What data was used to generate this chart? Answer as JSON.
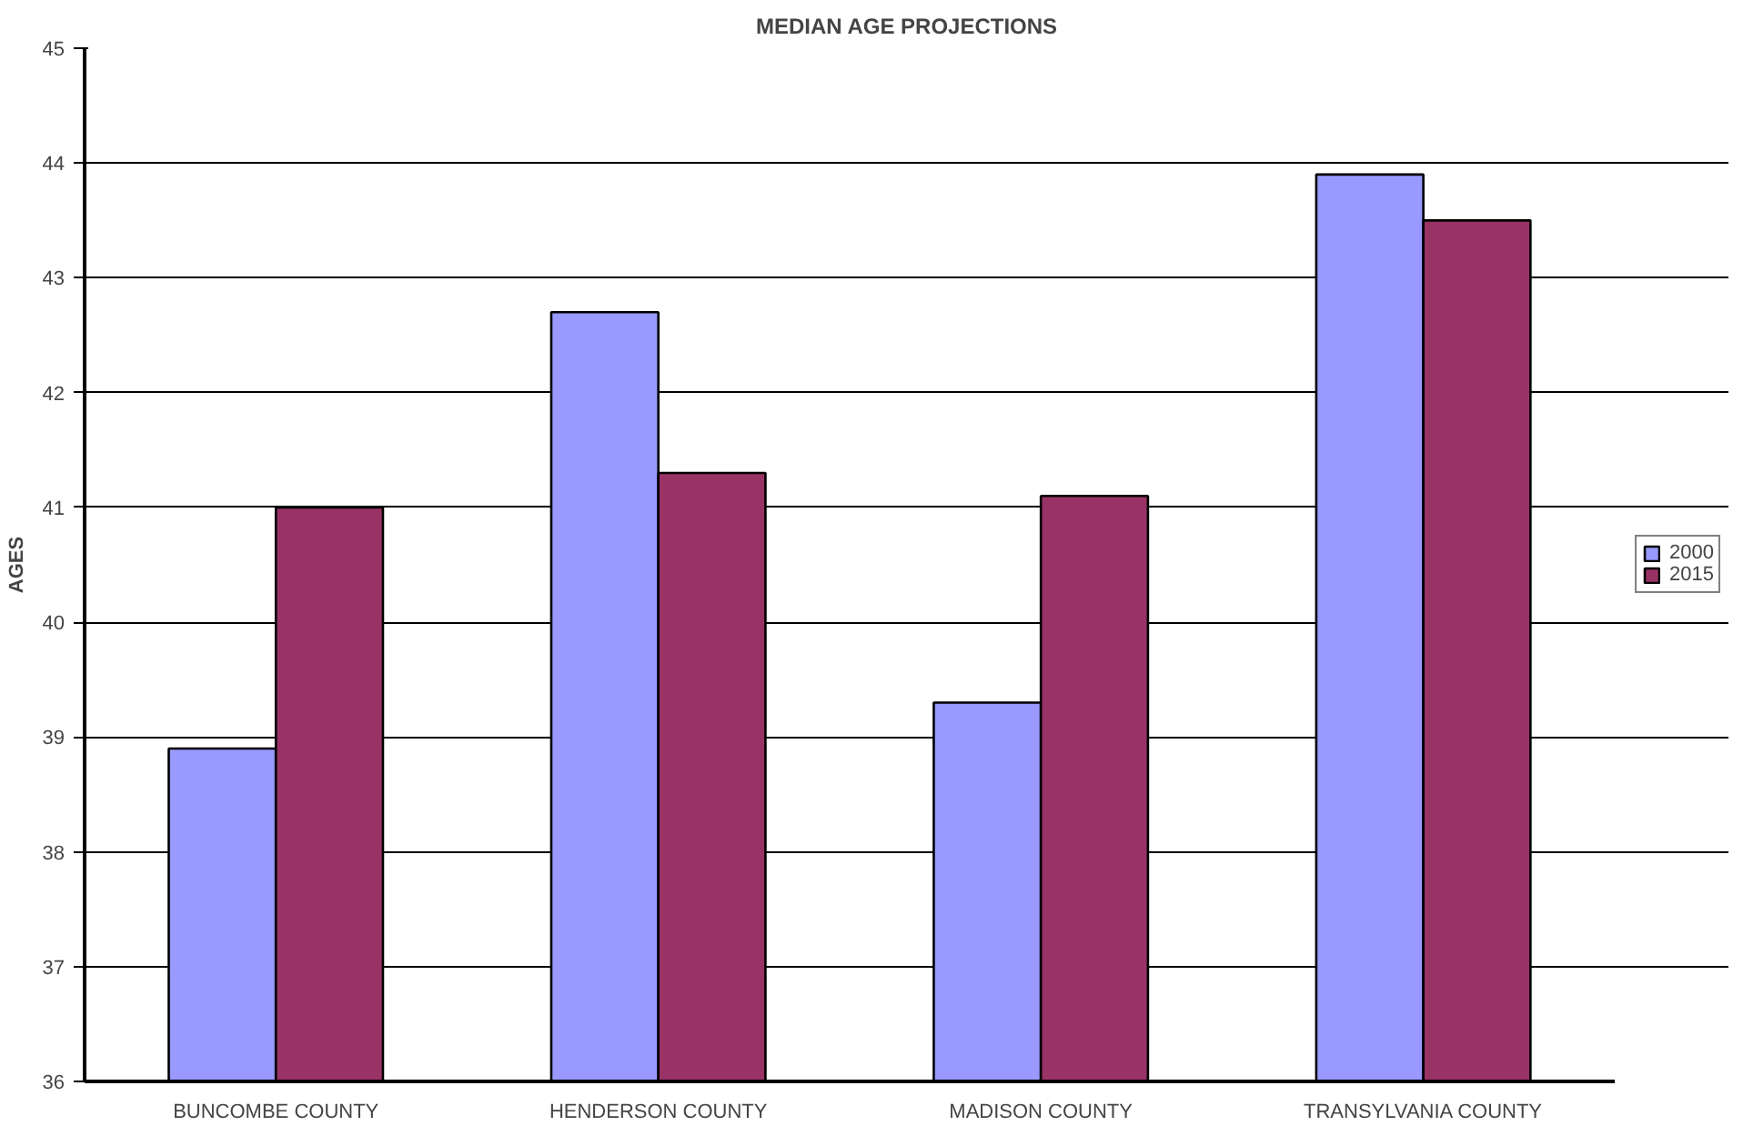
{
  "chart_data": {
    "type": "bar",
    "title": "MEDIAN AGE PROJECTIONS",
    "ylabel": "AGES",
    "categories": [
      "BUNCOMBE COUNTY",
      "HENDERSON COUNTY",
      "MADISON COUNTY",
      "TRANSYLVANIA COUNTY"
    ],
    "series": [
      {
        "name": "2000",
        "color": "#9999ff",
        "values": [
          38.9,
          42.7,
          39.3,
          43.9
        ]
      },
      {
        "name": "2015",
        "color": "#993366",
        "values": [
          41.0,
          41.3,
          41.1,
          43.5
        ]
      }
    ],
    "ylim": [
      36,
      45
    ],
    "yticks": [
      36,
      37,
      38,
      39,
      40,
      41,
      42,
      43,
      44,
      45
    ],
    "grid": "y",
    "legend": "right"
  }
}
